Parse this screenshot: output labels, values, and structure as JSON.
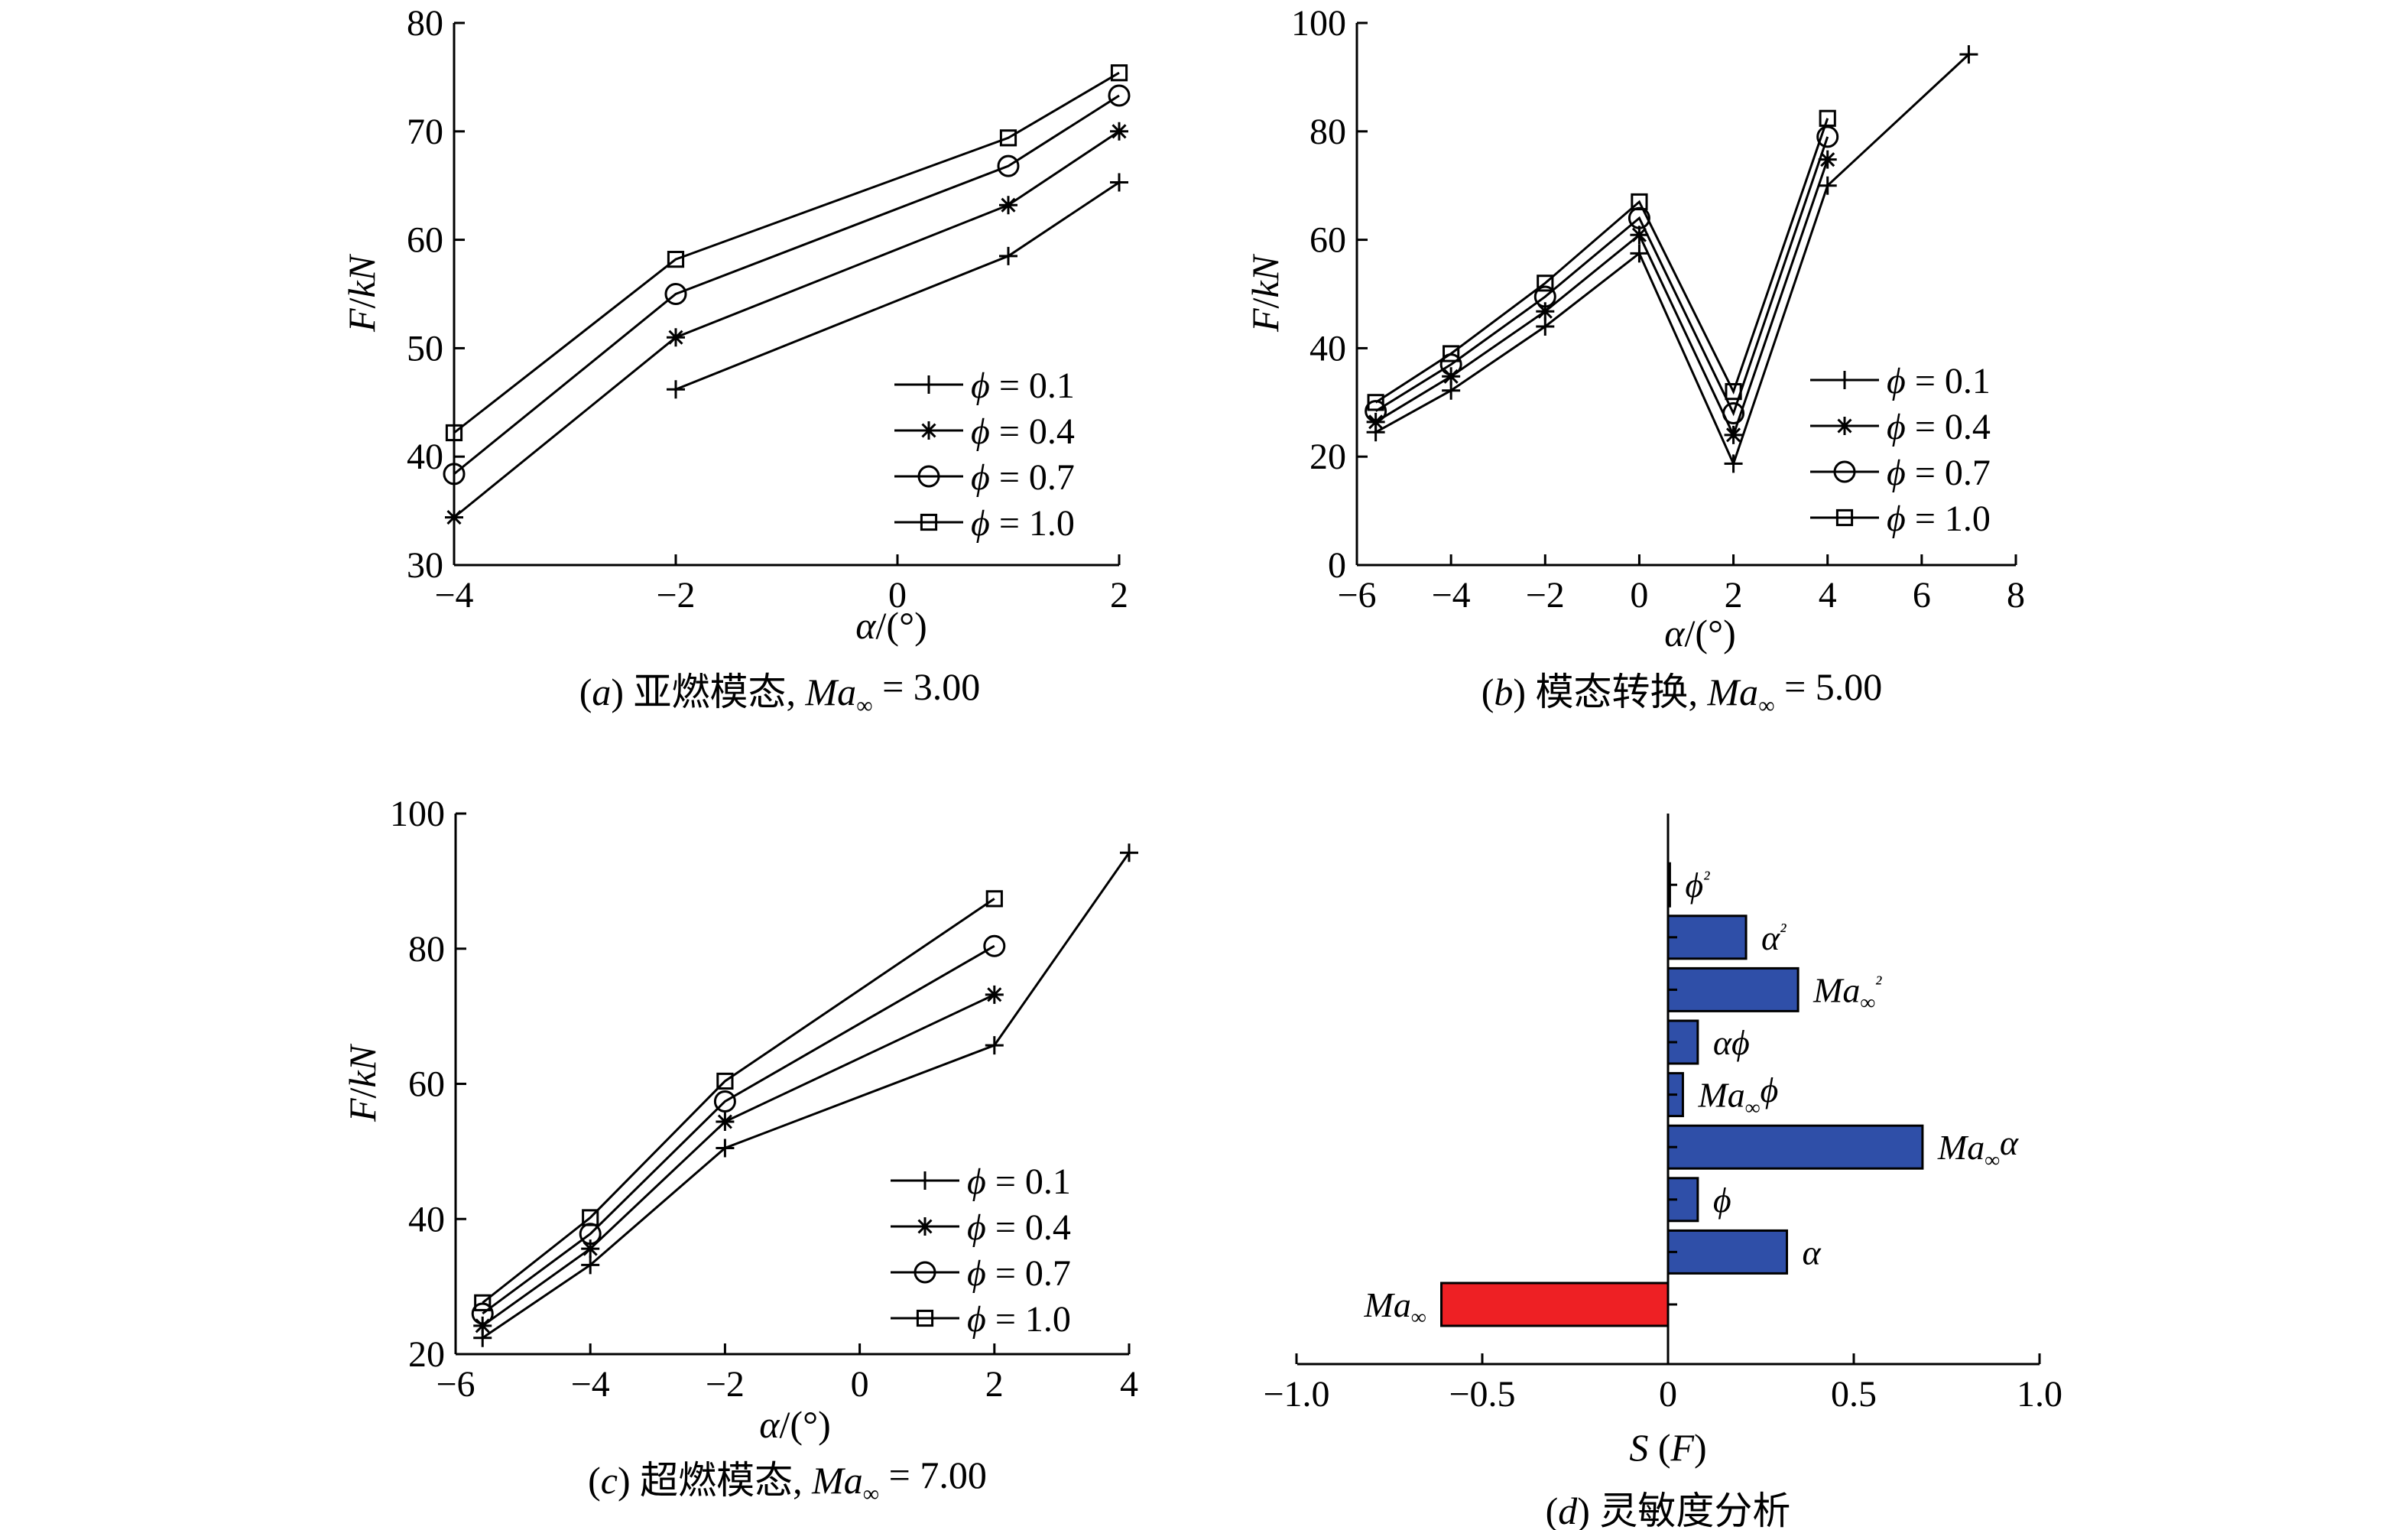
{
  "chart_data": [
    {
      "id": "a",
      "type": "line",
      "caption": "(a) 亚燃模态, Ma∞ = 3.00",
      "xlabel": "α/(°)",
      "ylabel": "F/kN",
      "xlim": [
        -4,
        2
      ],
      "ylim": [
        30,
        80
      ],
      "xticks": [
        -4,
        -2,
        0,
        2
      ],
      "yticks": [
        30,
        40,
        50,
        60,
        70,
        80
      ],
      "grid": false,
      "legend_position": "lower-right",
      "series": [
        {
          "name": "ϕ = 0.1",
          "marker": "plus",
          "x": [
            -2,
            1,
            2
          ],
          "y": [
            46.2,
            58.5,
            65.3
          ]
        },
        {
          "name": "ϕ = 0.4",
          "marker": "star",
          "x": [
            -4,
            -2,
            1,
            2
          ],
          "y": [
            34.4,
            51.0,
            63.2,
            70.0
          ]
        },
        {
          "name": "ϕ = 0.7",
          "marker": "circle",
          "x": [
            -4,
            -2,
            1,
            2
          ],
          "y": [
            38.4,
            55.0,
            66.8,
            73.3
          ]
        },
        {
          "name": "ϕ = 1.0",
          "marker": "square",
          "x": [
            -4,
            -2,
            1,
            2
          ],
          "y": [
            42.2,
            58.2,
            69.4,
            75.4
          ]
        }
      ]
    },
    {
      "id": "b",
      "type": "line",
      "caption": "(b) 模态转换, Ma∞ = 5.00",
      "xlabel": "α/(°)",
      "ylabel": "F/kN",
      "xlim": [
        -6,
        8
      ],
      "ylim": [
        0,
        100
      ],
      "xticks": [
        -6,
        -4,
        -2,
        0,
        2,
        4,
        6,
        8
      ],
      "yticks": [
        0,
        20,
        40,
        60,
        80,
        100
      ],
      "grid": false,
      "legend_position": "lower-right",
      "series": [
        {
          "name": "ϕ = 0.1",
          "marker": "plus",
          "x": [
            -5.6,
            -4,
            -2,
            0,
            2,
            4,
            7
          ],
          "y": [
            24.5,
            32.2,
            44.0,
            57.5,
            18.7,
            70.0,
            94.2
          ]
        },
        {
          "name": "ϕ = 0.4",
          "marker": "star",
          "x": [
            -5.6,
            -4,
            -2,
            0,
            2,
            4
          ],
          "y": [
            26.4,
            34.8,
            46.8,
            60.9,
            24.0,
            74.8
          ]
        },
        {
          "name": "ϕ = 0.7",
          "marker": "circle",
          "x": [
            -5.6,
            -4,
            -2,
            0,
            2,
            4
          ],
          "y": [
            28.4,
            37.0,
            49.5,
            64.0,
            28.0,
            79.0
          ]
        },
        {
          "name": "ϕ = 1.0",
          "marker": "square",
          "x": [
            -5.6,
            -4,
            -2,
            0,
            2,
            4
          ],
          "y": [
            30.0,
            39.0,
            52.0,
            67.0,
            32.0,
            82.4
          ]
        }
      ]
    },
    {
      "id": "c",
      "type": "line",
      "caption": "(c) 超燃模态, Ma∞ = 7.00",
      "xlabel": "α/(°)",
      "ylabel": "F/kN",
      "xlim": [
        -6,
        4
      ],
      "ylim": [
        20,
        100
      ],
      "xticks": [
        -6,
        -4,
        -2,
        0,
        2,
        4
      ],
      "yticks": [
        20,
        40,
        60,
        80,
        100
      ],
      "grid": false,
      "legend_position": "lower-right",
      "series": [
        {
          "name": "ϕ = 0.1",
          "marker": "plus",
          "x": [
            -5.6,
            -4,
            -2,
            2,
            4
          ],
          "y": [
            22.4,
            33.2,
            50.5,
            65.7,
            94.2
          ]
        },
        {
          "name": "ϕ = 0.4",
          "marker": "star",
          "x": [
            -5.6,
            -4,
            -2,
            2
          ],
          "y": [
            24.2,
            35.6,
            54.4,
            73.2
          ]
        },
        {
          "name": "ϕ = 0.7",
          "marker": "circle",
          "x": [
            -5.6,
            -4,
            -2,
            2
          ],
          "y": [
            26.0,
            37.8,
            57.4,
            80.4
          ]
        },
        {
          "name": "ϕ = 1.0",
          "marker": "square",
          "x": [
            -5.6,
            -4,
            -2,
            2
          ],
          "y": [
            27.6,
            40.2,
            60.4,
            87.4
          ]
        }
      ]
    },
    {
      "id": "d",
      "type": "bar",
      "orientation": "horizontal",
      "caption": "(d) 灵敏度分析",
      "xlabel": "S (F)",
      "xlim": [
        -1.0,
        1.0
      ],
      "xticks": [
        -1.0,
        -0.5,
        0,
        0.5,
        1.0
      ],
      "xtick_labels": [
        "−1.0",
        "−0.5",
        "0",
        "0.5",
        "1.0"
      ],
      "categories": [
        "Ma∞",
        "α",
        "ϕ",
        "Ma∞α",
        "Ma∞ϕ",
        "αϕ",
        "Ma∞²",
        "α²",
        "ϕ²"
      ],
      "values": [
        -0.61,
        0.32,
        0.08,
        0.685,
        0.04,
        0.08,
        0.35,
        0.21,
        0.005
      ],
      "colors": {
        "positive": "#2f4fa8",
        "negative": "#ee2024"
      }
    }
  ]
}
